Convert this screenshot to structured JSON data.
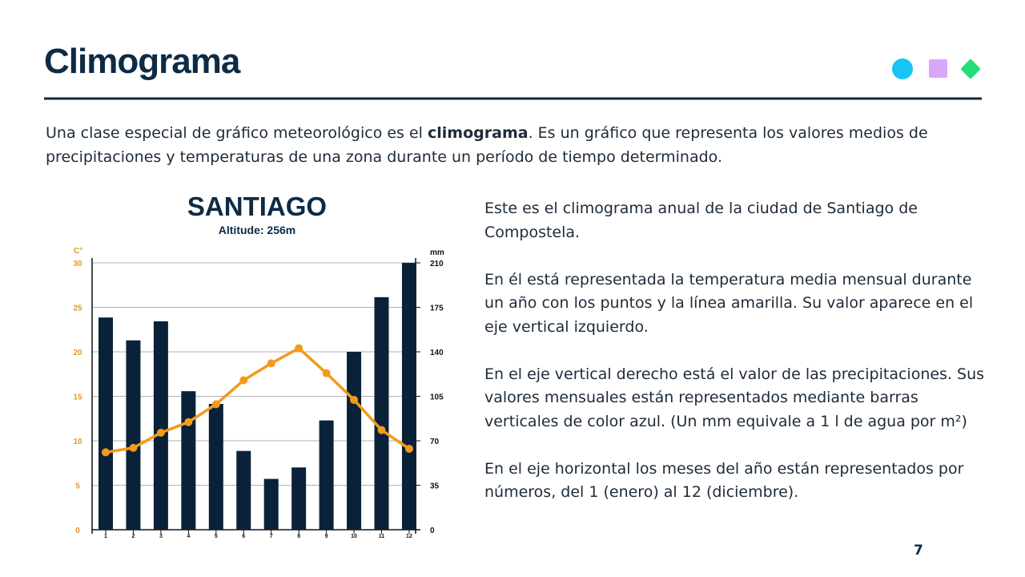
{
  "header": {
    "title": "Climograma"
  },
  "intro": [
    "Una clase especial de gráfico meteorológico es el ",
    "climograma",
    ". Es un  gráfico que representa los valores medios de precipitaciones y temperaturas de una zona durante un período de tiempo determinado."
  ],
  "explanation": [
    "Este es el climograma anual de la ciudad de Santiago de Compostela.",
    "En él está representada la temperatura media mensual durante un año con los puntos y la línea amarilla. Su valor aparece en el eje vertical izquierdo.",
    "En el eje vertical derecho está el valor de las precipitaciones. Sus valores mensuales están representados mediante barras verticales de color azul. (Un mm equivale a 1 l de agua por m²)",
    "En el eje horizontal los meses del año están representados por números, del 1 (enero) al 12 (diciembre)."
  ],
  "page_number": "7",
  "chart_data": {
    "type": "bar",
    "title": "SANTIAGO",
    "subtitle": "Altitude: 256m",
    "y_label": "C°",
    "y2_label": "mm",
    "categories": [
      "1",
      "2",
      "3",
      "4",
      "5",
      "6",
      "7",
      "8",
      "9",
      "10",
      "11",
      "12"
    ],
    "series": [
      {
        "kind": "bar",
        "axis": "y2",
        "color": "#0a2239",
        "values": [
          167,
          149,
          164,
          109,
          99,
          62,
          40,
          49,
          86,
          140,
          183,
          210
        ]
      },
      {
        "kind": "line",
        "axis": "y",
        "color": "#f39a1c",
        "values": [
          8.7,
          9.2,
          10.9,
          12.1,
          14.1,
          16.8,
          18.7,
          20.4,
          17.6,
          14.6,
          11.2,
          9.1
        ]
      }
    ],
    "ylim": [
      0,
      30
    ],
    "yticks": [
      0,
      5,
      10,
      15,
      20,
      25,
      30
    ],
    "y2lim": [
      0,
      210
    ],
    "y2ticks": [
      0,
      35,
      70,
      105,
      140,
      175,
      210
    ],
    "grid": true
  }
}
